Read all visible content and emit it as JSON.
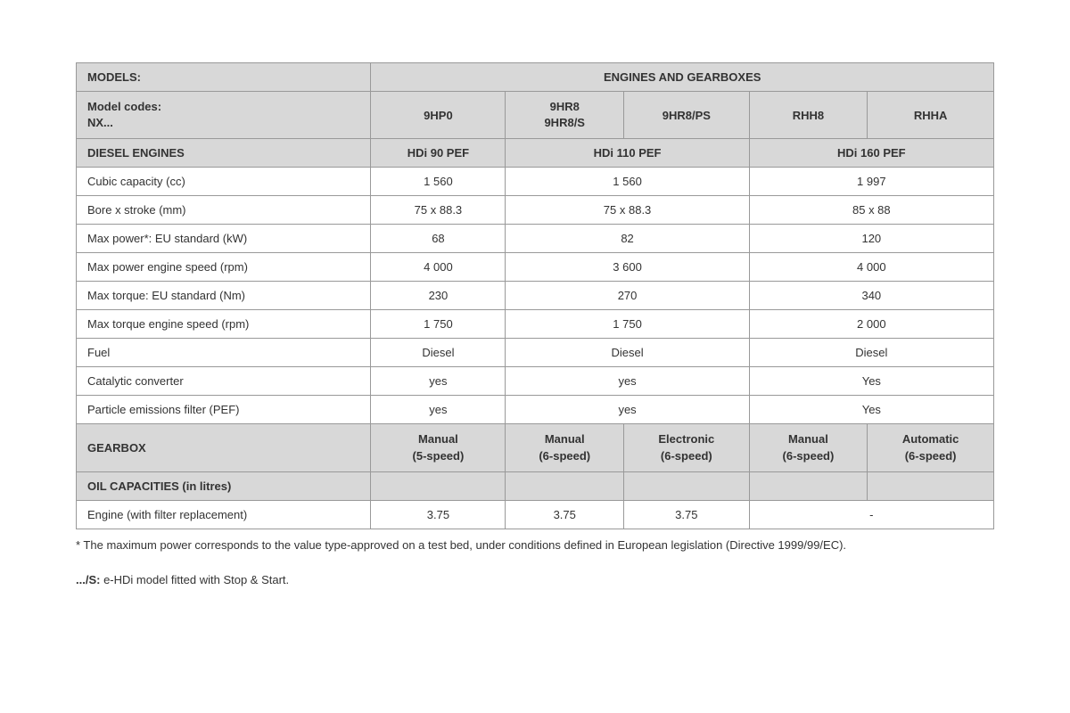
{
  "table": {
    "headers": {
      "models_label": "MODELS:",
      "engines_gearboxes": "ENGINES AND GEARBOXES",
      "model_codes_label_line1": "Model codes:",
      "model_codes_label_line2": "NX...",
      "col_9HP0": "9HP0",
      "col_9HR8_line1": "9HR8",
      "col_9HR8_line2": "9HR8/S",
      "col_9HR8PS": "9HR8/PS",
      "col_RHH8": "RHH8",
      "col_RHHA": "RHHA"
    },
    "diesel_section": {
      "title": "DIESEL ENGINES",
      "engine1": "HDi 90 PEF",
      "engine2": "HDi 110 PEF",
      "engine3": "HDi 160 PEF",
      "rows": [
        {
          "label": "Cubic capacity (cc)",
          "v1": "1 560",
          "v2": "1 560",
          "v3": "1 997"
        },
        {
          "label": "Bore x stroke (mm)",
          "v1": "75 x 88.3",
          "v2": "75 x 88.3",
          "v3": "85 x 88"
        },
        {
          "label": "Max power*: EU standard (kW)",
          "v1": "68",
          "v2": "82",
          "v3": "120"
        },
        {
          "label": "Max power engine speed (rpm)",
          "v1": "4 000",
          "v2": "3 600",
          "v3": "4 000"
        },
        {
          "label": "Max torque: EU standard (Nm)",
          "v1": "230",
          "v2": "270",
          "v3": "340"
        },
        {
          "label": "Max torque engine speed (rpm)",
          "v1": "1 750",
          "v2": "1 750",
          "v3": "2 000"
        },
        {
          "label": "Fuel",
          "v1": "Diesel",
          "v2": "Diesel",
          "v3": "Diesel"
        },
        {
          "label": "Catalytic converter",
          "v1": "yes",
          "v2": "yes",
          "v3": "Yes"
        },
        {
          "label": "Particle emissions filter (PEF)",
          "v1": "yes",
          "v2": "yes",
          "v3": "Yes"
        }
      ]
    },
    "gearbox_section": {
      "title": "GEARBOX",
      "gb1_line1": "Manual",
      "gb1_line2": "(5-speed)",
      "gb2_line1": "Manual",
      "gb2_line2": "(6-speed)",
      "gb3_line1": "Electronic",
      "gb3_line2": "(6-speed)",
      "gb4_line1": "Manual",
      "gb4_line2": "(6-speed)",
      "gb5_line1": "Automatic",
      "gb5_line2": "(6-speed)"
    },
    "oil_section": {
      "title": "OIL CAPACITIES (in litres)",
      "row_label": "Engine (with filter replacement)",
      "v1": "3.75",
      "v2": "3.75",
      "v3": "3.75",
      "v4": "-"
    }
  },
  "footnote1": "* The maximum power corresponds to the value type-approved on a test bed, under conditions defined in European legislation (Directive 1999/99/EC).",
  "footnote2_bold": ".../S:",
  "footnote2_rest": " e-HDi model fitted with Stop & Start."
}
